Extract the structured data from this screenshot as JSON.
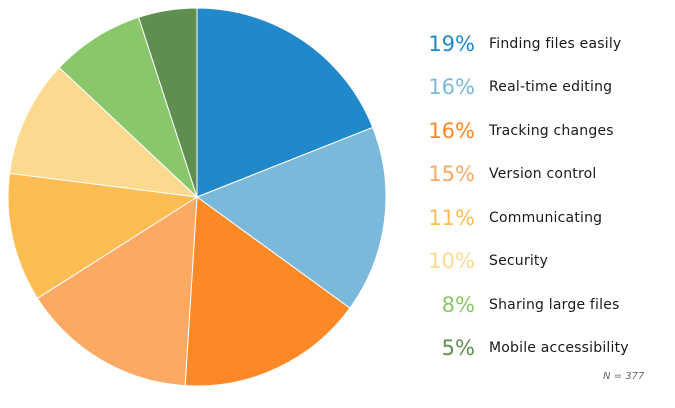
{
  "chart_data": {
    "type": "pie",
    "title": "",
    "slices": [
      {
        "label": "Finding files easily",
        "pct_label": "19%",
        "value": 19,
        "color": "#2188c9"
      },
      {
        "label": "Real-time editing",
        "pct_label": "16%",
        "value": 16,
        "color": "#7bb9da"
      },
      {
        "label": "Tracking changes",
        "pct_label": "16%",
        "value": 16,
        "color": "#fd8826"
      },
      {
        "label": "Version control",
        "pct_label": "15%",
        "value": 15,
        "color": "#fba963"
      },
      {
        "label": "Communicating",
        "pct_label": "11%",
        "value": 11,
        "color": "#fdbd53"
      },
      {
        "label": "Security",
        "pct_label": "10%",
        "value": 10,
        "color": "#fbd98f"
      },
      {
        "label": "Sharing large files",
        "pct_label": "8%",
        "value": 8,
        "color": "#8ac76b"
      },
      {
        "label": "Mobile accessibility",
        "pct_label": "5%",
        "value": 5,
        "color": "#5f8f50"
      }
    ],
    "start_angle": "12 o'clock",
    "direction": "clockwise",
    "legend": "right",
    "note": "N = 377"
  }
}
